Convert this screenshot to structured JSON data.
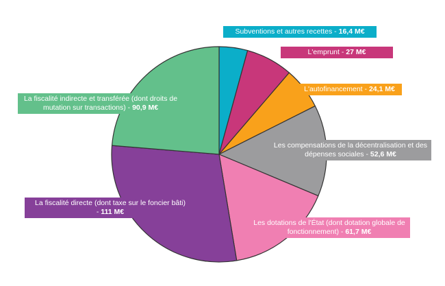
{
  "chart_data": {
    "type": "pie",
    "unit": "M€",
    "start_angle_deg": 0,
    "direction": "clockwise",
    "slices": [
      {
        "label": "Subventions et autres recettes",
        "value": 16.4,
        "display": "16,4 M€",
        "color": "#0baec9"
      },
      {
        "label": "L'emprunt",
        "value": 27,
        "display": "27 M€",
        "color": "#c8377a"
      },
      {
        "label": "L'autofinancement",
        "value": 24.1,
        "display": "24,1 M€",
        "color": "#f9a11b"
      },
      {
        "label": "Les compensations de la décentralisation et des dépenses sociales",
        "value": 52.6,
        "display": "52,6 M€",
        "color": "#9c9c9e"
      },
      {
        "label": "Les dotations de l'État (dont dotation globale de fonctionnement)",
        "value": 61.7,
        "display": "61,7 M€",
        "color": "#f07fb2"
      },
      {
        "label": "La fiscalité directe (dont taxe sur le foncier bâti)",
        "value": 111,
        "display": "111 M€",
        "color": "#864099"
      },
      {
        "label": "La fiscalité indirecte et transférée (dont droits de mutation sur transactions)",
        "value": 90.9,
        "display": "90,9 M€",
        "color": "#63c08b"
      }
    ]
  },
  "labels": {
    "subventions": {
      "text": "Subventions et autres recettes -",
      "amount": "16,4 M€"
    },
    "emprunt": {
      "text": "L'emprunt -",
      "amount": "27 M€"
    },
    "autofinancement": {
      "text": "L'autofinancement -",
      "amount": "24,1 M€"
    },
    "compensations": {
      "line1": "Les compensations de la décentralisation et des",
      "line2": "dépenses sociales -",
      "amount": "52,6 M€"
    },
    "dotations": {
      "line1": "Les dotations de l'État (dont dotation globale de",
      "line2": "fonctionnement) -",
      "amount": "61,7 M€"
    },
    "fiscalite_directe": {
      "line1": "La fiscalité directe (dont taxe sur le foncier bâti)",
      "line2": "-",
      "amount": "111 M€"
    },
    "fiscalite_indirecte": {
      "line1": "La fiscalité indirecte et transférée (dont droits de",
      "line2": "mutation sur transactions) -",
      "amount": "90,9 M€"
    }
  }
}
